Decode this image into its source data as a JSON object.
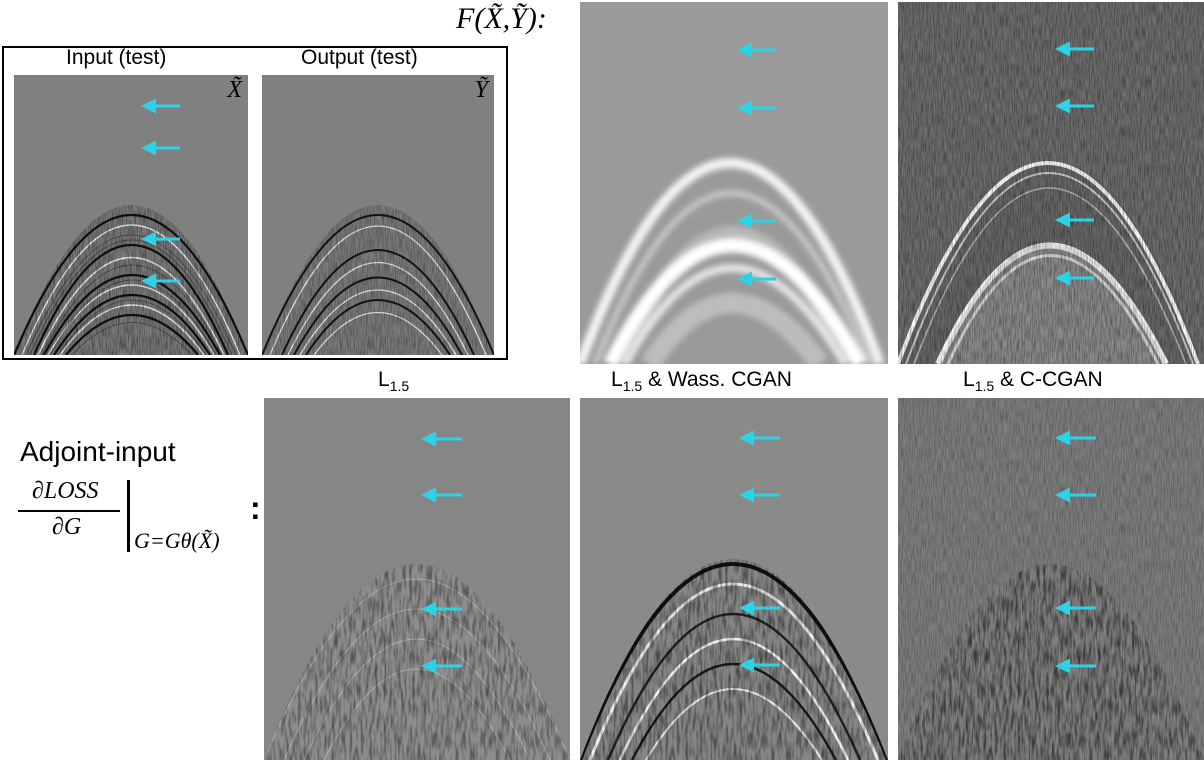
{
  "figure": {
    "input_box": {
      "input_title": "Input (test)",
      "output_title": "Output (test)",
      "input_symbol": "X̃",
      "output_symbol": "Ỹ"
    },
    "top_row": {
      "function_label": "F(X̃,Ỹ):"
    },
    "columns": [
      {
        "label_main": "L",
        "label_sub": "1.5",
        "label_rest": ""
      },
      {
        "label_main": "L",
        "label_sub": "1.5",
        "label_rest": " & Wass. CGAN"
      },
      {
        "label_main": "L",
        "label_sub": "1.5",
        "label_rest": " & C-CGAN"
      }
    ],
    "bottom_row": {
      "title": "Adjoint-input",
      "numerator": "∂LOSS",
      "denominator": "∂G",
      "condition": "G=Gθ(X̃)",
      "colon": ":"
    },
    "arrow_color": "#2ad3e6"
  }
}
